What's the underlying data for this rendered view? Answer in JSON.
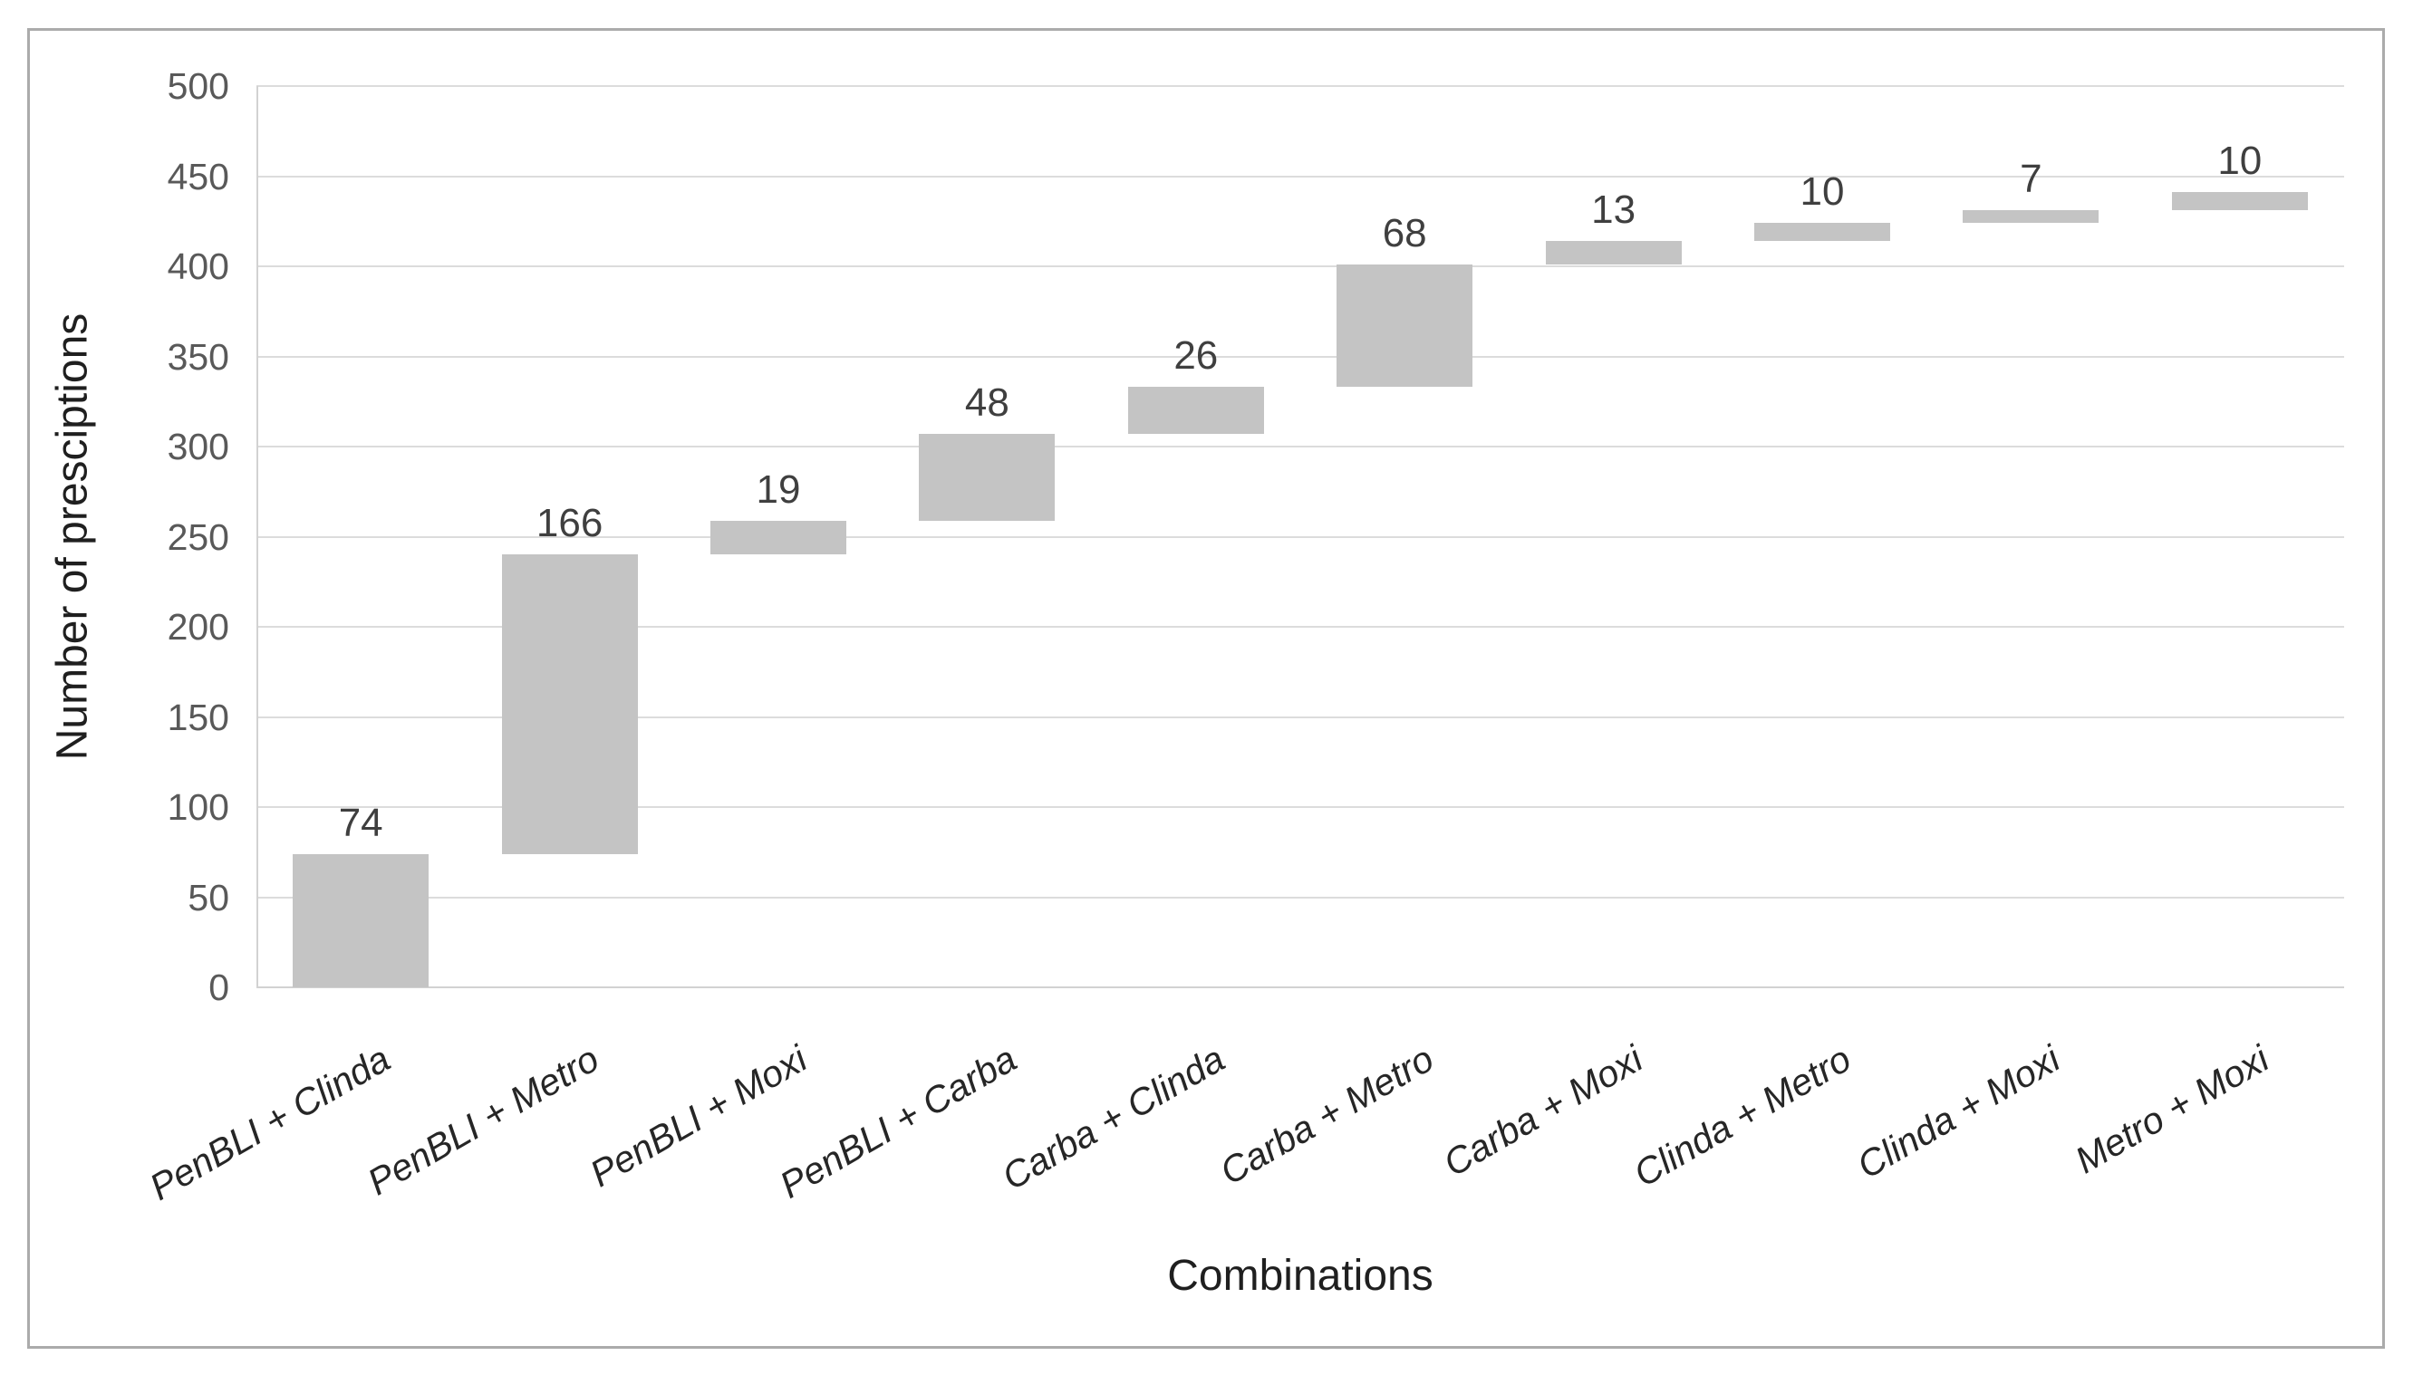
{
  "figure": {
    "background": "#ffffff",
    "border_color": "#ababab"
  },
  "chart_data": {
    "type": "bar",
    "subtype": "waterfall",
    "title": "",
    "xlabel": "Combinations",
    "ylabel": "Number of presciptions",
    "categories": [
      "PenBLI + Clinda",
      "PenBLI + Metro",
      "PenBLI + Moxi",
      "PenBLI + Carba",
      "Carba + Clinda",
      "Carba + Metro",
      "Carba + Moxi",
      "Clinda + Metro",
      "Clinda + Moxi",
      "Metro + Moxi"
    ],
    "values": [
      74,
      166,
      19,
      48,
      26,
      68,
      13,
      10,
      7,
      10
    ],
    "cumulative_totals": [
      74,
      240,
      259,
      307,
      333,
      401,
      414,
      424,
      431,
      441
    ],
    "data_labels_shown": true,
    "ylim": [
      0,
      500
    ],
    "yticks": [
      0,
      50,
      100,
      150,
      200,
      250,
      300,
      350,
      400,
      450,
      500
    ],
    "grid": "horizontal",
    "legend_position": "none",
    "category_label_angle_deg": -30,
    "colors": {
      "bar_fill": "#c4c4c4",
      "gridline": "#dcdcdc",
      "axis_line": "#d2d2d2",
      "tick_label": "#595959",
      "data_label": "#3f3f3f",
      "category_label": "#262626",
      "axis_title": "#1f1f1f"
    }
  }
}
